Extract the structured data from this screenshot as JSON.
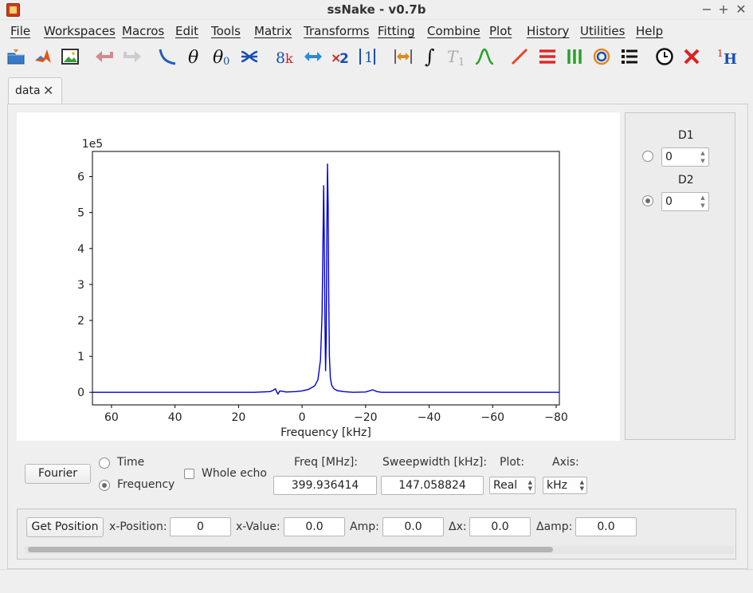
{
  "window": {
    "title": "ssNake - v0.7b",
    "controls": {
      "minimize": "−",
      "maximize": "+",
      "close": "✕"
    }
  },
  "menu": [
    "File",
    "Workspaces",
    "Macros",
    "Edit",
    "Tools",
    "Matrix",
    "Transforms",
    "Fitting",
    "Combine",
    "Plot",
    "History",
    "Utilities",
    "Help"
  ],
  "toolbar": [
    "open-folder-icon",
    "matlab-icon",
    "image-export-icon",
    "undo-icon",
    "redo-icon",
    "apodize-icon",
    "theta-phase-icon",
    "theta-zero-phase-icon",
    "swap-echo-icon",
    "sizing-icon",
    "shift-data-icon",
    "multiply-icon",
    "reference-icon",
    "region-icon",
    "integral-icon",
    "t1-relaxation-icon",
    "peak-deconvolution-icon",
    "line-icon",
    "horizontal-stack-icon",
    "vertical-stack-icon",
    "contour-icon",
    "list-icon",
    "history-icon",
    "close-red-icon",
    "isotope-1h-icon"
  ],
  "tab": {
    "label": "data",
    "close": "✕"
  },
  "side_panel": {
    "d1": {
      "label": "D1",
      "value": "0",
      "selected": false
    },
    "d2": {
      "label": "D2",
      "value": "0",
      "selected": true
    }
  },
  "controls": {
    "fourier_button": "Fourier",
    "time_label": "Time",
    "frequency_label": "Frequency",
    "domain_selected": "Frequency",
    "whole_echo_label": "Whole echo",
    "whole_echo_checked": false,
    "freq_label": "Freq [MHz]:",
    "freq_value": "399.936414",
    "sweepwidth_label": "Sweepwidth [kHz]:",
    "sweepwidth_value": "147.058824",
    "plot_label": "Plot:",
    "plot_value": "Real",
    "axis_label": "Axis:",
    "axis_value": "kHz"
  },
  "position_bar": {
    "get_position_button": "Get Position",
    "x_position_label": "x-Position:",
    "x_position_value": "0",
    "x_value_label": "x-Value:",
    "x_value_value": "0.0",
    "amp_label": "Amp:",
    "amp_value": "0.0",
    "dx_label": "Δx:",
    "dx_value": "0.0",
    "damp_label": "Δamp:",
    "damp_value": "0.0"
  },
  "chart_data": {
    "type": "line",
    "title": "",
    "xlabel": "Frequency [kHz]",
    "ylabel": "",
    "y_scale_label": "1e5",
    "x_reversed": true,
    "xlim": [
      66,
      -81
    ],
    "ylim": [
      -0.35,
      6.7
    ],
    "xticks": [
      60,
      40,
      20,
      0,
      -20,
      -40,
      -60,
      -80
    ],
    "xtick_labels": [
      "60",
      "40",
      "20",
      "0",
      "−20",
      "−40",
      "−60",
      "−80"
    ],
    "yticks": [
      0,
      1,
      2,
      3,
      4,
      5,
      6
    ],
    "ytick_labels": [
      "0",
      "1",
      "2",
      "3",
      "4",
      "5",
      "6"
    ],
    "grid": false,
    "line_color": "#0000cc",
    "series": [
      {
        "x": [
          66,
          60,
          50,
          40,
          30,
          20,
          15,
          10,
          9,
          8.4,
          8.0,
          7.6,
          7.0,
          5.0,
          2.0,
          0.0,
          -2.0,
          -4.0,
          -5.0,
          -5.8,
          -6.3,
          -6.6,
          -6.8,
          -7.0,
          -7.2,
          -7.4,
          -7.6,
          -7.8,
          -8.0,
          -8.2,
          -8.4,
          -8.6,
          -8.9,
          -9.3,
          -10.0,
          -11.0,
          -13.0,
          -16.0,
          -20.0,
          -21.5,
          -22.2,
          -22.8,
          -23.5,
          -25.0,
          -30.0,
          -40.0,
          -50.0,
          -60.0,
          -70.0,
          -81.0
        ],
        "values": [
          0.0,
          0.0,
          0.0,
          0.0,
          0.0,
          0.0,
          0.0,
          0.02,
          0.06,
          0.1,
          0.02,
          -0.05,
          0.04,
          0.01,
          0.02,
          0.04,
          0.08,
          0.18,
          0.35,
          0.9,
          2.2,
          4.3,
          5.75,
          4.2,
          2.0,
          0.6,
          1.5,
          4.5,
          6.35,
          5.2,
          2.6,
          1.0,
          0.4,
          0.2,
          0.1,
          0.05,
          0.02,
          0.0,
          0.01,
          0.05,
          0.07,
          0.05,
          0.02,
          0.0,
          0.0,
          0.0,
          0.0,
          0.0,
          0.0,
          0.0
        ]
      }
    ]
  }
}
